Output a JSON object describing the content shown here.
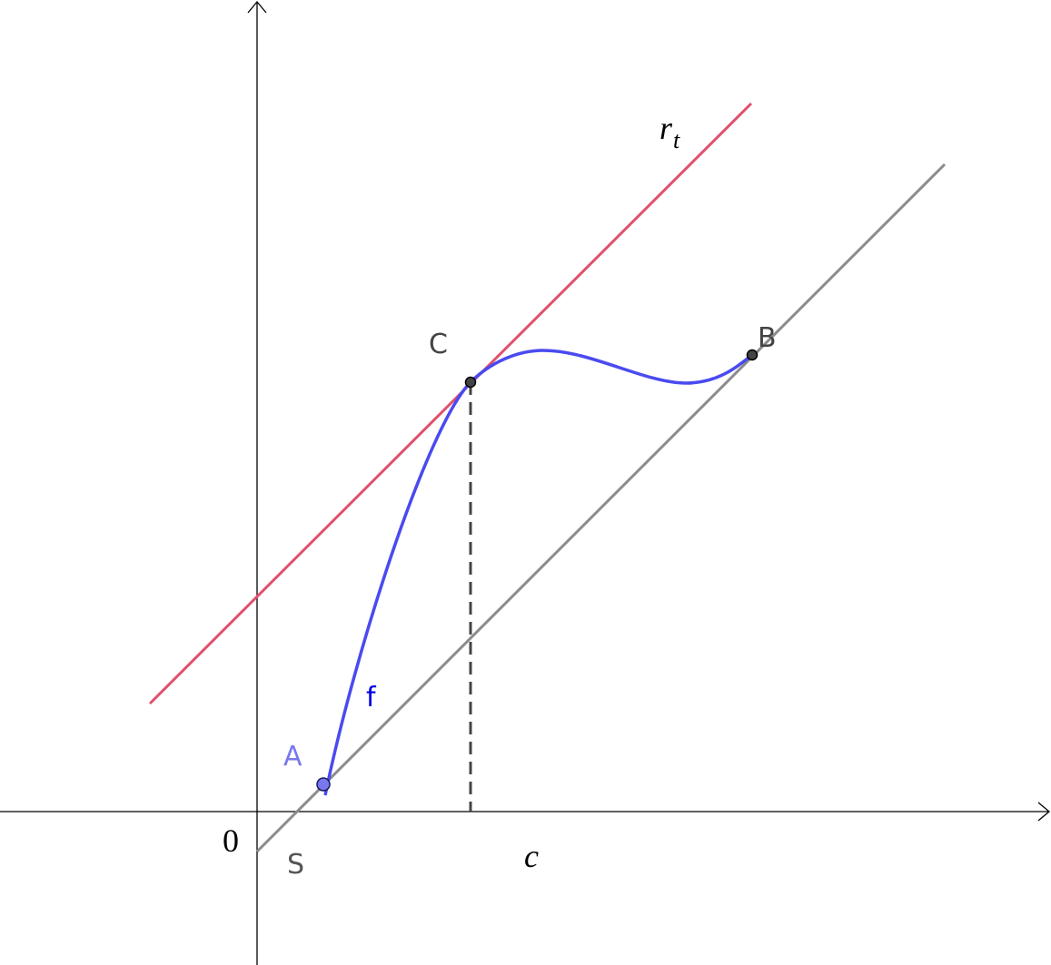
{
  "curve_label": "f",
  "tangent_label": {
    "main": "r",
    "sub": "t"
  },
  "points": [
    {
      "label": "C"
    },
    {
      "label": "B"
    },
    {
      "label": "A"
    },
    {
      "label": "S"
    }
  ],
  "origin_label": "0",
  "x_marker_label": "c"
}
